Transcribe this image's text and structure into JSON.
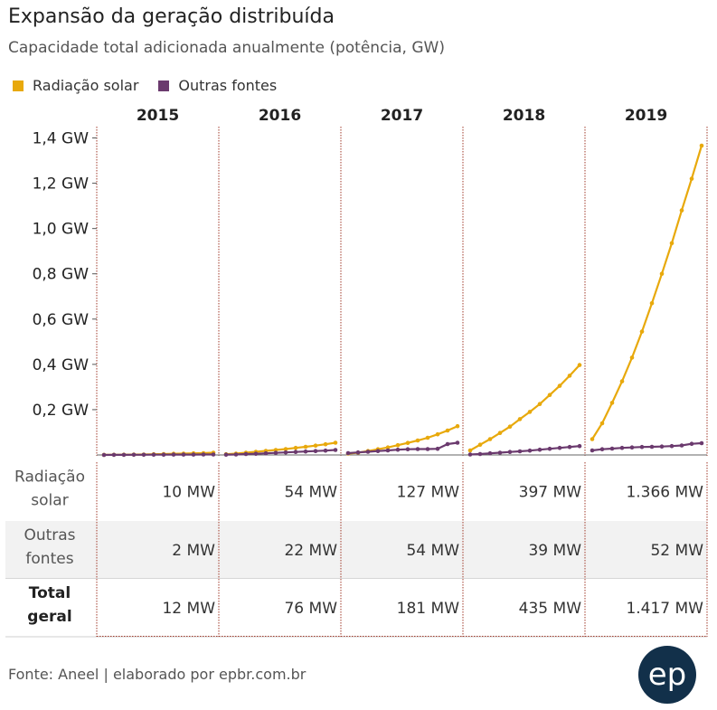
{
  "title": "Expansão da geração distribuída",
  "subtitle": "Capacidade total adicionada anualmente (potência, GW)",
  "footer": "Fonte: Aneel | elaborado por epbr.com.br",
  "logo": "ep",
  "colors": {
    "solar": "#e8a90c",
    "outras": "#6b3a6e",
    "divider": "#a03a2a",
    "row_alt": "#f2f2f2",
    "logo_bg": "#12304a"
  },
  "chart_data": {
    "type": "line",
    "title": "Expansão da geração distribuída",
    "subtitle": "Capacidade total adicionada anualmente (potência, GW)",
    "legend_position": "top-left",
    "grid": false,
    "panels": [
      "2015",
      "2016",
      "2017",
      "2018",
      "2019"
    ],
    "x_note": "12 monthly cumulative points per year panel",
    "ylim": [
      0,
      1.45
    ],
    "yticks": [
      {
        "value": 0.2,
        "label": "0,2 GW"
      },
      {
        "value": 0.4,
        "label": "0,4 GW"
      },
      {
        "value": 0.6,
        "label": "0,6 GW"
      },
      {
        "value": 0.8,
        "label": "0,8 GW"
      },
      {
        "value": 1.0,
        "label": "1,0 GW"
      },
      {
        "value": 1.2,
        "label": "1,2 GW"
      },
      {
        "value": 1.4,
        "label": "1,4 GW"
      }
    ],
    "series": [
      {
        "name": "Radiação solar",
        "color": "#e8a90c",
        "values": [
          [
            0.0003,
            0.0006,
            0.001,
            0.0015,
            0.002,
            0.003,
            0.004,
            0.005,
            0.006,
            0.007,
            0.008,
            0.01
          ],
          [
            0.003,
            0.006,
            0.01,
            0.014,
            0.018,
            0.022,
            0.026,
            0.031,
            0.036,
            0.041,
            0.047,
            0.054
          ],
          [
            0.006,
            0.01,
            0.017,
            0.025,
            0.033,
            0.043,
            0.053,
            0.064,
            0.076,
            0.091,
            0.108,
            0.127
          ],
          [
            0.02,
            0.045,
            0.07,
            0.097,
            0.125,
            0.158,
            0.19,
            0.225,
            0.265,
            0.305,
            0.35,
            0.397
          ],
          [
            0.07,
            0.14,
            0.23,
            0.325,
            0.43,
            0.545,
            0.67,
            0.8,
            0.935,
            1.08,
            1.22,
            1.366
          ]
        ]
      },
      {
        "name": "Outras fontes",
        "color": "#6b3a6e",
        "values": [
          [
            0.0001,
            0.0002,
            0.0004,
            0.0006,
            0.0008,
            0.001,
            0.0012,
            0.0014,
            0.0016,
            0.0017,
            0.0018,
            0.002
          ],
          [
            0.001,
            0.002,
            0.004,
            0.005,
            0.007,
            0.009,
            0.011,
            0.013,
            0.015,
            0.017,
            0.019,
            0.022
          ],
          [
            0.008,
            0.011,
            0.014,
            0.017,
            0.02,
            0.023,
            0.025,
            0.026,
            0.026,
            0.027,
            0.048,
            0.054
          ],
          [
            0.002,
            0.004,
            0.007,
            0.01,
            0.013,
            0.016,
            0.019,
            0.023,
            0.027,
            0.031,
            0.035,
            0.039
          ],
          [
            0.02,
            0.025,
            0.028,
            0.031,
            0.033,
            0.035,
            0.036,
            0.037,
            0.039,
            0.042,
            0.049,
            0.052
          ]
        ]
      }
    ],
    "table": {
      "row_labels": [
        "Radiação solar",
        "Outras fontes",
        "Total geral"
      ],
      "rows": [
        [
          "10 MW",
          "54 MW",
          "127 MW",
          "397 MW",
          "1.366 MW"
        ],
        [
          "2 MW",
          "22 MW",
          "54 MW",
          "39 MW",
          "52 MW"
        ],
        [
          "12 MW",
          "76 MW",
          "181 MW",
          "435 MW",
          "1.417 MW"
        ]
      ]
    }
  }
}
